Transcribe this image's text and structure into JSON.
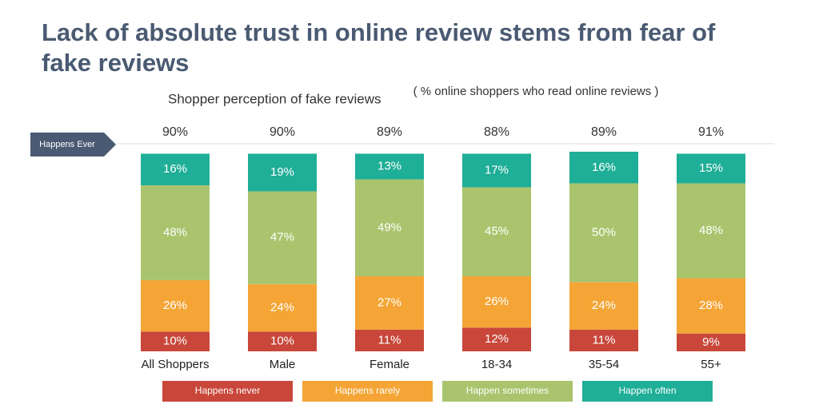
{
  "chart_data": {
    "type": "stacked_bar",
    "title": "Lack of absolute trust in online review stems from fear of fake reviews",
    "subtitle": "Shopper perception of fake reviews",
    "note": "( % online shoppers who read online reviews )",
    "categories": [
      "All Shoppers",
      "Male",
      "Female",
      "18-34",
      "35-54",
      "55+"
    ],
    "series": [
      {
        "name": "Happens never",
        "color": "#c8473a",
        "values": [
          10,
          10,
          11,
          12,
          11,
          9
        ],
        "value_labels": [
          "10%",
          "10%",
          "11%",
          "12%",
          "11%",
          "9%"
        ]
      },
      {
        "name": "Happens rarely",
        "color": "#f4a536",
        "values": [
          26,
          24,
          27,
          26,
          24,
          28
        ],
        "value_labels": [
          "26%",
          "24%",
          "27%",
          "26%",
          "24%",
          "28%"
        ]
      },
      {
        "name": "Happen sometimes",
        "color": "#a9c46d",
        "values": [
          48,
          47,
          49,
          45,
          50,
          48
        ],
        "value_labels": [
          "48%",
          "47%",
          "49%",
          "45%",
          "50%",
          "48%"
        ]
      },
      {
        "name": "Happen often",
        "color": "#1fae97",
        "values": [
          16,
          19,
          13,
          17,
          16,
          15
        ],
        "value_labels": [
          "16%",
          "19%",
          "13%",
          "17%",
          "16%",
          "15%"
        ]
      }
    ],
    "totals": {
      "label": "Happens Ever",
      "values": [
        90,
        90,
        89,
        88,
        89,
        91
      ],
      "value_labels": [
        "90%",
        "90%",
        "89%",
        "88%",
        "89%",
        "91%"
      ]
    }
  }
}
